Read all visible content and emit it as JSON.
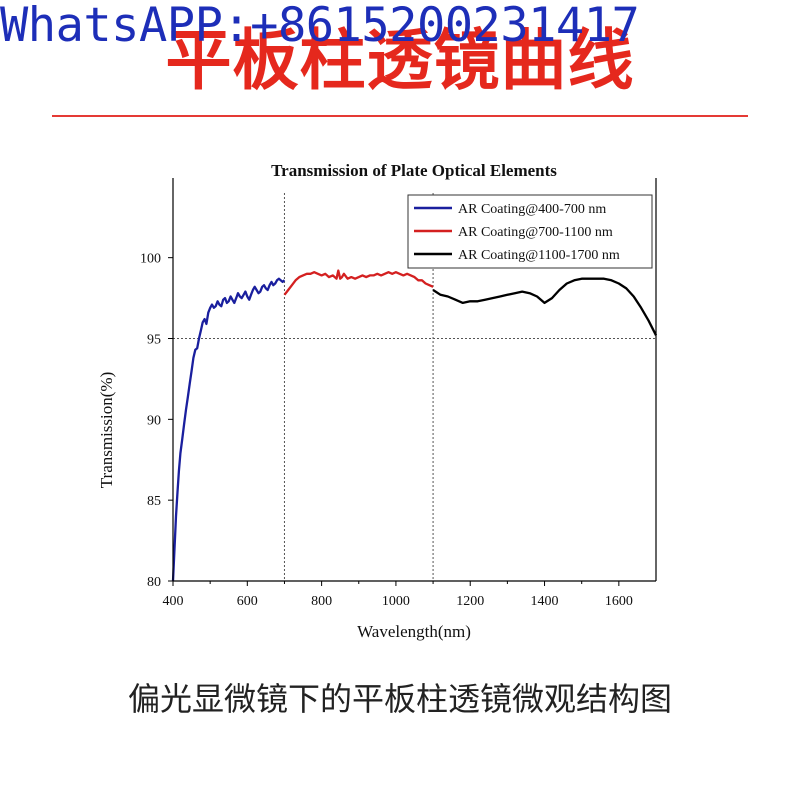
{
  "watermark": "WhatsAPP:+8615200231417",
  "headline": "平板柱透镜曲线",
  "caption": "偏光显微镜下的平板柱透镜微观结构图",
  "colors": {
    "blue": "#1a1f9e",
    "red": "#d42020",
    "black": "#000000",
    "headline": "#e5281d",
    "watermark": "#1d2eb8"
  },
  "chart_data": {
    "type": "line",
    "title": "Transmission of Plate Optical Elements",
    "xlabel": "Wavelength(nm)",
    "ylabel": "Transmission(%)",
    "xlim": [
      400,
      1700
    ],
    "ylim": [
      80,
      104
    ],
    "xticks": [
      400,
      600,
      800,
      1000,
      1200,
      1400,
      1600
    ],
    "yticks": [
      80,
      85,
      90,
      95,
      100
    ],
    "ref_vlines": [
      700,
      1100
    ],
    "ref_hline": 95,
    "legend_position": "top-right",
    "series": [
      {
        "name": "AR Coating@400-700 nm",
        "color": "#1a1f9e",
        "x": [
          400,
          404,
          408,
          412,
          416,
          420,
          425,
          430,
          435,
          440,
          445,
          450,
          455,
          460,
          465,
          470,
          475,
          480,
          485,
          490,
          495,
          500,
          505,
          510,
          515,
          520,
          525,
          530,
          535,
          540,
          545,
          550,
          555,
          560,
          565,
          570,
          575,
          580,
          585,
          590,
          595,
          600,
          605,
          610,
          615,
          620,
          625,
          630,
          635,
          640,
          645,
          650,
          655,
          660,
          665,
          670,
          675,
          680,
          685,
          690,
          695,
          700
        ],
        "y": [
          80,
          82,
          84,
          85.5,
          86.8,
          87.9,
          88.8,
          89.7,
          90.6,
          91.4,
          92.2,
          93.0,
          93.8,
          94.3,
          94.4,
          95.0,
          95.5,
          96.0,
          96.2,
          95.9,
          96.6,
          96.9,
          97.1,
          96.9,
          97.0,
          97.3,
          97.1,
          97.0,
          97.4,
          97.5,
          97.2,
          97.3,
          97.6,
          97.4,
          97.2,
          97.5,
          97.8,
          97.6,
          97.5,
          97.7,
          97.9,
          97.6,
          97.4,
          97.7,
          98.0,
          98.2,
          98.0,
          97.8,
          97.9,
          98.2,
          98.3,
          98.1,
          98.0,
          98.3,
          98.5,
          98.3,
          98.4,
          98.6,
          98.7,
          98.6,
          98.5,
          98.6
        ]
      },
      {
        "name": "AR Coating@700-1100 nm",
        "color": "#d42020",
        "x": [
          700,
          710,
          720,
          730,
          740,
          750,
          760,
          770,
          780,
          790,
          800,
          810,
          820,
          830,
          840,
          845,
          850,
          855,
          860,
          870,
          880,
          890,
          900,
          910,
          920,
          930,
          940,
          950,
          960,
          970,
          980,
          990,
          1000,
          1010,
          1020,
          1030,
          1040,
          1050,
          1060,
          1070,
          1080,
          1090,
          1100
        ],
        "y": [
          97.7,
          98.0,
          98.3,
          98.6,
          98.8,
          98.9,
          99.0,
          99.0,
          99.1,
          99.0,
          98.9,
          99.0,
          98.8,
          98.9,
          98.7,
          99.2,
          98.7,
          98.8,
          99.0,
          98.7,
          98.8,
          98.7,
          98.8,
          98.9,
          98.8,
          98.9,
          98.9,
          99.0,
          98.9,
          99.0,
          99.1,
          99.0,
          99.1,
          99.0,
          98.9,
          99.0,
          98.9,
          98.8,
          98.6,
          98.6,
          98.4,
          98.3,
          98.2
        ]
      },
      {
        "name": "AR Coating@1100-1700 nm",
        "color": "#000000",
        "x": [
          1100,
          1120,
          1140,
          1160,
          1180,
          1200,
          1220,
          1240,
          1260,
          1280,
          1300,
          1320,
          1340,
          1360,
          1380,
          1400,
          1420,
          1440,
          1460,
          1480,
          1500,
          1520,
          1540,
          1560,
          1580,
          1600,
          1620,
          1640,
          1660,
          1680,
          1700
        ],
        "y": [
          98.0,
          97.7,
          97.6,
          97.4,
          97.2,
          97.3,
          97.3,
          97.4,
          97.5,
          97.6,
          97.7,
          97.8,
          97.9,
          97.8,
          97.6,
          97.2,
          97.5,
          98.0,
          98.4,
          98.6,
          98.7,
          98.7,
          98.7,
          98.7,
          98.6,
          98.4,
          98.1,
          97.6,
          96.9,
          96.1,
          95.2
        ]
      }
    ]
  }
}
